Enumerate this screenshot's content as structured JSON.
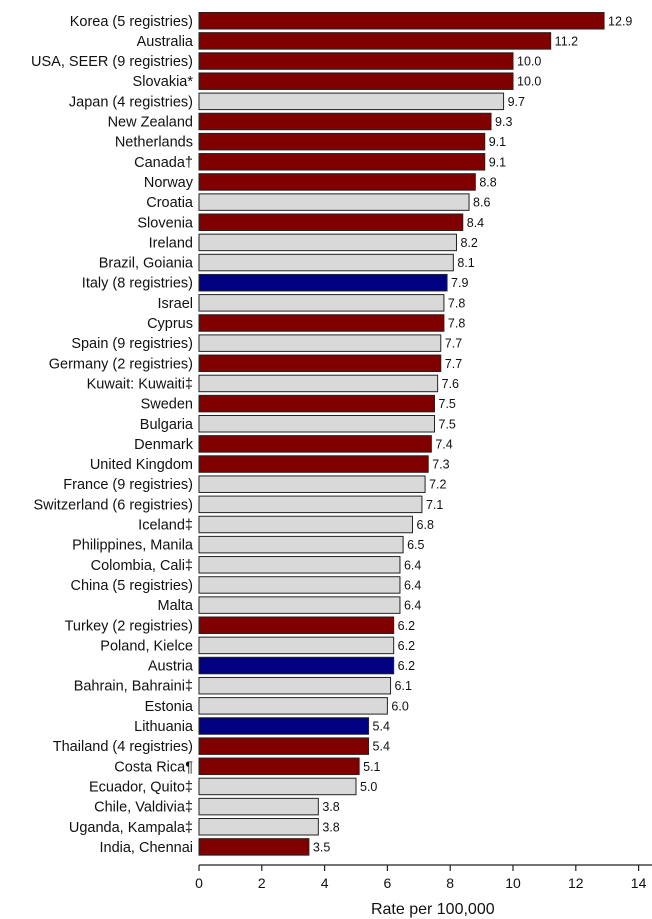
{
  "chart_data": {
    "type": "bar",
    "orientation": "horizontal",
    "xlabel": "Rate per 100,000",
    "xlim": [
      0,
      14
    ],
    "xticks": [
      0,
      2,
      4,
      6,
      8,
      10,
      12,
      14
    ],
    "grid": false,
    "colors": {
      "dark_red": "#800000",
      "dark_blue": "#000080",
      "light_grey": "#d9d9d9"
    },
    "categories": [
      "Korea (5 registries)",
      "Australia",
      "USA, SEER (9 registries)",
      "Slovakia*",
      "Japan (4 registries)",
      "New Zealand",
      "Netherlands",
      "Canada†",
      "Norway",
      "Croatia",
      "Slovenia",
      "Ireland",
      "Brazil, Goiania",
      "Italy (8 registries)",
      "Israel",
      "Cyprus",
      "Spain (9 registries)",
      "Germany (2 registries)",
      "Kuwait: Kuwaiti‡",
      "Sweden",
      "Bulgaria",
      "Denmark",
      "United Kingdom",
      "France (9 registries)",
      "Switzerland (6 registries)",
      "Iceland‡",
      "Philippines, Manila",
      "Colombia, Cali‡",
      "China (5 registries)",
      "Malta",
      "Turkey (2 registries)",
      "Poland, Kielce",
      "Austria",
      "Bahrain, Bahraini‡",
      "Estonia",
      "Lithuania",
      "Thailand (4 registries)",
      "Costa Rica¶",
      "Ecuador, Quito‡",
      "Chile, Valdivia‡",
      "Uganda, Kampala‡",
      "India, Chennai"
    ],
    "values": [
      12.9,
      11.2,
      10.0,
      10.0,
      9.7,
      9.3,
      9.1,
      9.1,
      8.8,
      8.6,
      8.4,
      8.2,
      8.1,
      7.9,
      7.8,
      7.8,
      7.7,
      7.7,
      7.6,
      7.5,
      7.5,
      7.4,
      7.3,
      7.2,
      7.1,
      6.8,
      6.5,
      6.4,
      6.4,
      6.4,
      6.2,
      6.2,
      6.2,
      6.1,
      6.0,
      5.4,
      5.4,
      5.1,
      5.0,
      3.8,
      3.8,
      3.5
    ],
    "value_labels": [
      "12.9",
      "11.2",
      "10.0",
      "10.0",
      "9.7",
      "9.3",
      "9.1",
      "9.1",
      "8.8",
      "8.6",
      "8.4",
      "8.2",
      "8.1",
      "7.9",
      "7.8",
      "7.8",
      "7.7",
      "7.7",
      "7.6",
      "7.5",
      "7.5",
      "7.4",
      "7.3",
      "7.2",
      "7.1",
      "6.8",
      "6.5",
      "6.4",
      "6.4",
      "6.4",
      "6.2",
      "6.2",
      "6.2",
      "6.1",
      "6.0",
      "5.4",
      "5.4",
      "5.1",
      "5.0",
      "3.8",
      "3.8",
      "3.5"
    ],
    "bar_colors": [
      "dark_red",
      "dark_red",
      "dark_red",
      "dark_red",
      "light_grey",
      "dark_red",
      "dark_red",
      "dark_red",
      "dark_red",
      "light_grey",
      "dark_red",
      "light_grey",
      "light_grey",
      "dark_blue",
      "light_grey",
      "dark_red",
      "light_grey",
      "dark_red",
      "light_grey",
      "dark_red",
      "light_grey",
      "dark_red",
      "dark_red",
      "light_grey",
      "light_grey",
      "light_grey",
      "light_grey",
      "light_grey",
      "light_grey",
      "light_grey",
      "dark_red",
      "light_grey",
      "dark_blue",
      "light_grey",
      "light_grey",
      "dark_blue",
      "dark_red",
      "dark_red",
      "light_grey",
      "light_grey",
      "light_grey",
      "dark_red"
    ]
  }
}
